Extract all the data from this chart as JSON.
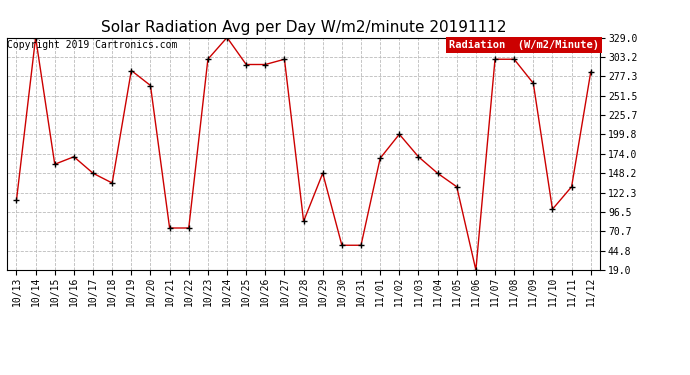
{
  "title": "Solar Radiation Avg per Day W/m2/minute 20191112",
  "copyright": "Copyright 2019 Cartronics.com",
  "legend_label": "Radiation  (W/m2/Minute)",
  "background_color": "#ffffff",
  "plot_bg_color": "#ffffff",
  "grid_color": "#bbbbbb",
  "line_color": "#cc0000",
  "marker_color": "#000000",
  "title_color": "#000000",
  "copyright_color": "#000000",
  "legend_bg": "#cc0000",
  "legend_text_color": "#ffffff",
  "yticks": [
    19.0,
    44.8,
    70.7,
    96.5,
    122.3,
    148.2,
    174.0,
    199.8,
    225.7,
    251.5,
    277.3,
    303.2,
    329.0
  ],
  "ylim": [
    19.0,
    329.0
  ],
  "dates": [
    "10/13",
    "10/14",
    "10/15",
    "10/16",
    "10/17",
    "10/18",
    "10/19",
    "10/20",
    "10/21",
    "10/22",
    "10/23",
    "10/24",
    "10/25",
    "10/26",
    "10/27",
    "10/28",
    "10/29",
    "10/30",
    "10/31",
    "11/01",
    "11/02",
    "11/03",
    "11/04",
    "11/05",
    "11/06",
    "11/07",
    "11/08",
    "11/09",
    "11/10",
    "11/11",
    "11/12"
  ],
  "values": [
    112,
    329,
    160,
    170,
    148,
    135,
    285,
    265,
    75,
    75,
    300,
    329,
    293,
    293,
    300,
    84,
    148,
    52,
    52,
    168,
    200,
    170,
    148,
    130,
    19,
    300,
    300,
    268,
    100,
    130,
    283
  ],
  "title_fontsize": 11,
  "tick_fontsize": 7,
  "copyright_fontsize": 7,
  "legend_fontsize": 7.5
}
